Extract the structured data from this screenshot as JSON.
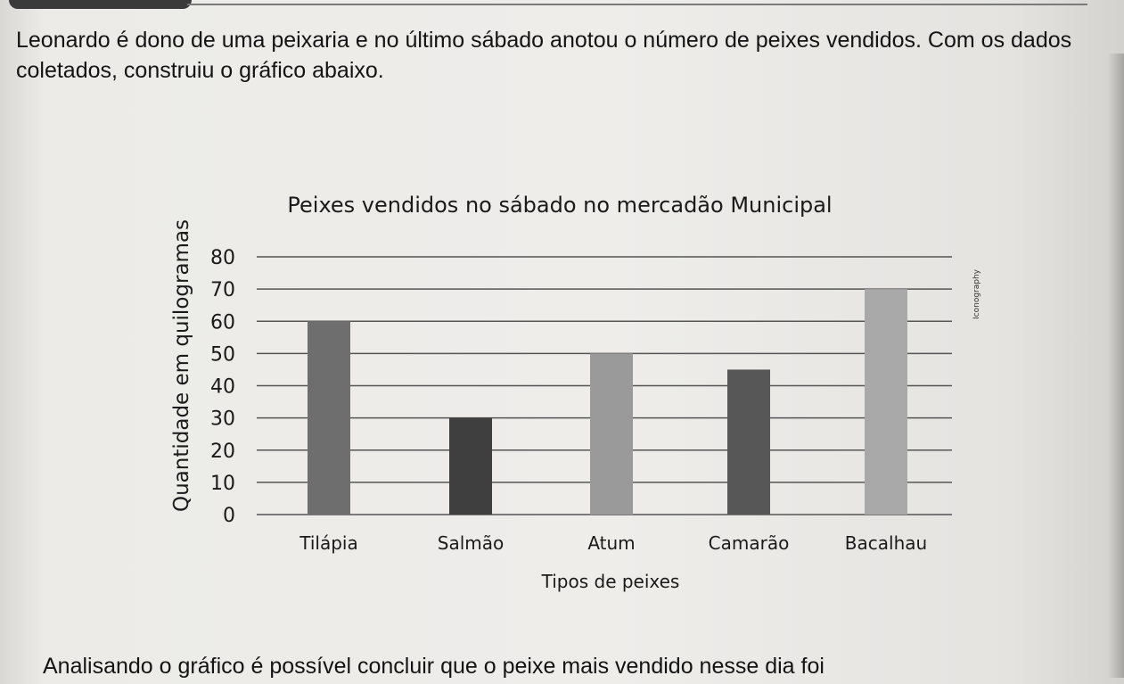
{
  "intro_text": "Leonardo é dono de uma peixaria e no último sábado anotou o número de peixes vendidos. Com os dados coletados, construiu o gráfico abaixo.",
  "question_text": "Analisando o gráfico é possível concluir que o peixe mais vendido nesse dia foi",
  "side_credit": "Iconography",
  "chart_data": {
    "type": "bar",
    "title": "Peixes vendidos no sábado no mercadão Municipal",
    "xlabel": "Tipos de peixes",
    "ylabel": "Quantidade em quilogramas",
    "categories": [
      "Tilápia",
      "Salmão",
      "Atum",
      "Camarão",
      "Bacalhau"
    ],
    "values": [
      60,
      30,
      50,
      45,
      70
    ],
    "ylim": [
      0,
      80
    ],
    "yticks": [
      0,
      10,
      20,
      30,
      40,
      50,
      60,
      70,
      80
    ],
    "grid": true,
    "bar_colors": [
      "#6e6e6e",
      "#3f3f3f",
      "#9a9a9a",
      "#575757",
      "#a9a9a9"
    ]
  }
}
